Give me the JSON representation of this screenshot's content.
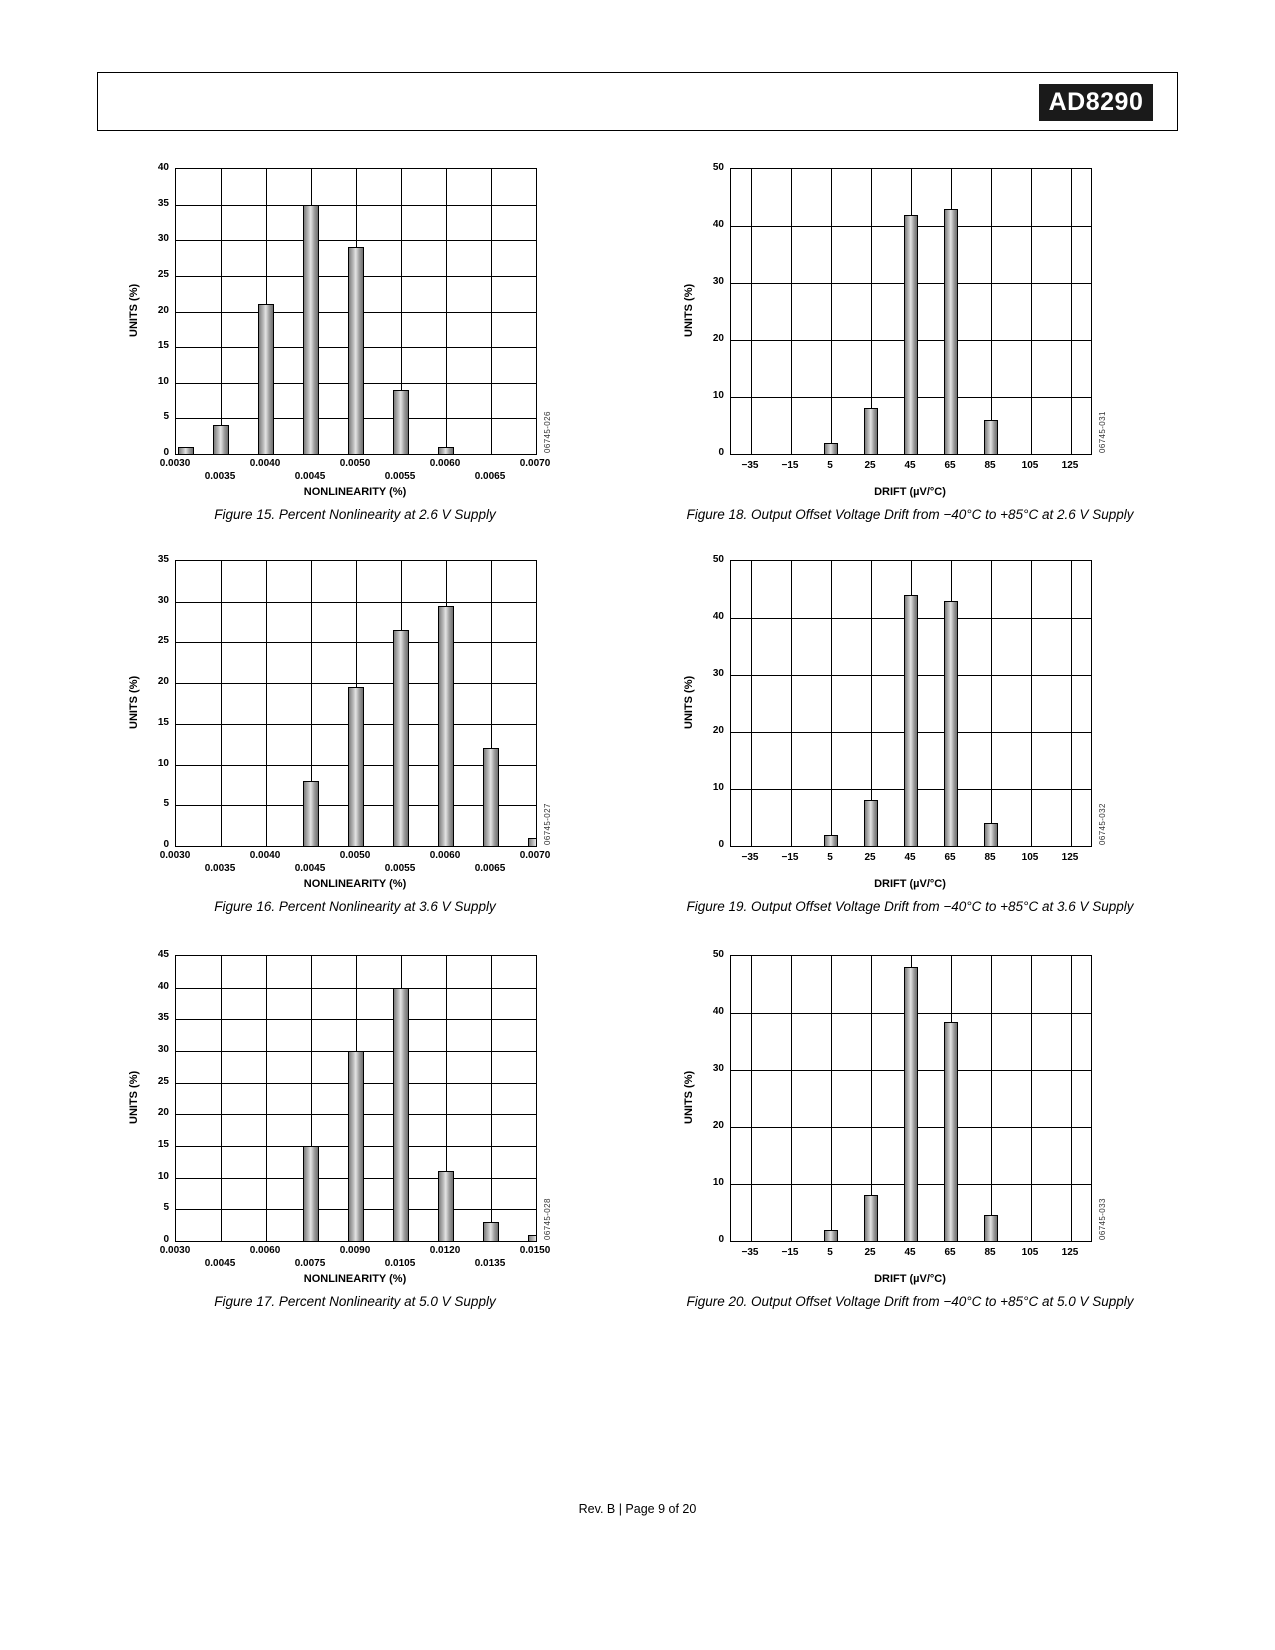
{
  "header": {
    "part_number": "AD8290"
  },
  "footer": {
    "text": "Rev. B | Page 9 of 20"
  },
  "chart_data": [
    {
      "type": "bar",
      "code": "06745-026",
      "caption": "Figure 15. Percent Nonlinearity at 2.6 V Supply",
      "ylabel": "UNITS (%)",
      "xlabel": "NONLINEARITY (%)",
      "ylim": [
        0,
        40
      ],
      "ystep": 5,
      "x_mode": "edge",
      "stagger": true,
      "grid": true,
      "legend": "none",
      "categories": [
        "0.0030",
        "0.0035",
        "0.0040",
        "0.0045",
        "0.0050",
        "0.0055",
        "0.0060",
        "0.0065",
        "0.0070"
      ],
      "values": [
        1,
        4,
        21,
        35,
        29,
        9,
        1,
        null,
        null
      ]
    },
    {
      "type": "bar",
      "code": "06745-027",
      "caption": "Figure 16. Percent Nonlinearity at 3.6 V Supply",
      "ylabel": "UNITS (%)",
      "xlabel": "NONLINEARITY (%)",
      "ylim": [
        0,
        35
      ],
      "ystep": 5,
      "x_mode": "edge",
      "stagger": true,
      "grid": true,
      "legend": "none",
      "categories": [
        "0.0030",
        "0.0035",
        "0.0040",
        "0.0045",
        "0.0050",
        "0.0055",
        "0.0060",
        "0.0065",
        "0.0070"
      ],
      "values": [
        null,
        null,
        null,
        8,
        19.5,
        26.5,
        29.5,
        12,
        1
      ]
    },
    {
      "type": "bar",
      "code": "06745-028",
      "caption": "Figure 17. Percent Nonlinearity at 5.0 V Supply",
      "ylabel": "UNITS (%)",
      "xlabel": "NONLINEARITY (%)",
      "ylim": [
        0,
        45
      ],
      "ystep": 5,
      "x_mode": "edge",
      "stagger": true,
      "grid": true,
      "legend": "none",
      "categories": [
        "0.0030",
        "0.0045",
        "0.0060",
        "0.0075",
        "0.0090",
        "0.0105",
        "0.0120",
        "0.0135",
        "0.0150"
      ],
      "values": [
        null,
        null,
        null,
        15,
        30,
        40,
        11,
        3,
        1
      ]
    },
    {
      "type": "bar",
      "code": "06745-031",
      "caption": "Figure 18. Output Offset Voltage Drift from −40°C to +85°C at 2.6 V Supply",
      "ylabel": "UNITS (%)",
      "xlabel": "DRIFT (µV/°C)",
      "ylim": [
        0,
        50
      ],
      "ystep": 10,
      "x_mode": "inset",
      "stagger": false,
      "grid": true,
      "legend": "none",
      "categories": [
        "−35",
        "−15",
        "5",
        "25",
        "45",
        "65",
        "85",
        "105",
        "125"
      ],
      "values": [
        null,
        null,
        2,
        8,
        42,
        43,
        6,
        null,
        null
      ]
    },
    {
      "type": "bar",
      "code": "06745-032",
      "caption": "Figure 19. Output Offset Voltage Drift from −40°C to +85°C at 3.6 V Supply",
      "ylabel": "UNITS (%)",
      "xlabel": "DRIFT (µV/°C)",
      "ylim": [
        0,
        50
      ],
      "ystep": 10,
      "x_mode": "inset",
      "stagger": false,
      "grid": true,
      "legend": "none",
      "categories": [
        "−35",
        "−15",
        "5",
        "25",
        "45",
        "65",
        "85",
        "105",
        "125"
      ],
      "values": [
        null,
        null,
        2,
        8,
        44,
        43,
        4,
        null,
        null
      ]
    },
    {
      "type": "bar",
      "code": "06745-033",
      "caption": "Figure 20. Output Offset Voltage Drift from −40°C to +85°C at 5.0 V Supply",
      "ylabel": "UNITS (%)",
      "xlabel": "DRIFT (µV/°C)",
      "ylim": [
        0,
        50
      ],
      "ystep": 10,
      "x_mode": "inset",
      "stagger": false,
      "grid": true,
      "legend": "none",
      "categories": [
        "−35",
        "−15",
        "5",
        "25",
        "45",
        "65",
        "85",
        "105",
        "125"
      ],
      "values": [
        null,
        null,
        2,
        8,
        48,
        38.5,
        4.5,
        null,
        null
      ]
    }
  ]
}
